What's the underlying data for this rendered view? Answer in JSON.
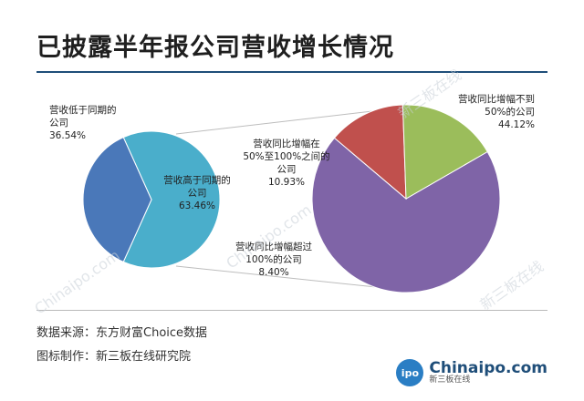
{
  "title": "已披露半年报公司营收增长情况",
  "source_line": "数据来源：东方财富Choice数据",
  "maker_line": "图标制作：新三板在线研究院",
  "watermark_texts": [
    "新三板在线",
    "Chinaipo.com"
  ],
  "logo": {
    "badge": "ipo",
    "main": "Chinaipo.com",
    "sub": "新三板在线"
  },
  "colors": {
    "low": "#4a78b9",
    "high": "#4aaecb",
    "over50": "#7f64a7",
    "between": "#9bbd5b",
    "over100": "#c0504d"
  },
  "chart_data": [
    {
      "type": "pie",
      "slices": [
        {
          "label": [
            "营收低于同期的",
            "公司"
          ],
          "value": 36.54,
          "value_text": "36.54%",
          "color": "#4a78b9"
        },
        {
          "label": [
            "营收高于同期的",
            "公司"
          ],
          "value": 63.46,
          "value_text": "63.46%",
          "color": "#4aaecb"
        }
      ]
    },
    {
      "type": "pie",
      "slices": [
        {
          "label": [
            "营收同比增幅不到",
            "50%的公司"
          ],
          "value": 44.12,
          "value_text": "44.12%",
          "color": "#7f64a7"
        },
        {
          "label": [
            "营收同比增幅在",
            "50%至100%之间的",
            "公司"
          ],
          "value": 10.93,
          "value_text": "10.93%",
          "color": "#9bbd5b"
        },
        {
          "label": [
            "营收同比增幅超过",
            "100%的公司"
          ],
          "value": 8.4,
          "value_text": "8.40%",
          "color": "#c0504d"
        }
      ]
    }
  ]
}
